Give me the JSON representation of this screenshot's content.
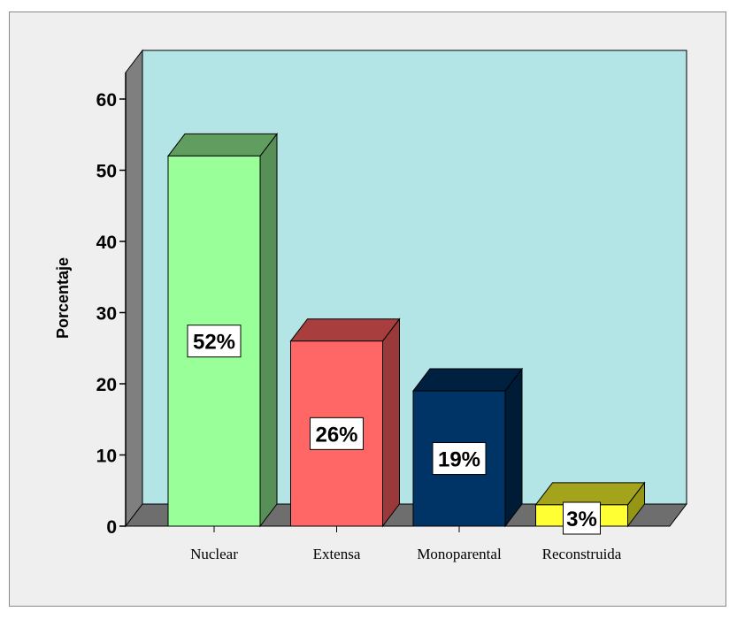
{
  "chart_data": {
    "type": "bar",
    "title": "",
    "xlabel": "",
    "ylabel": "Porcentaje",
    "ylim": [
      0,
      60
    ],
    "yticks": [
      0,
      10,
      20,
      30,
      40,
      50,
      60
    ],
    "categories": [
      "Nuclear",
      "Extensa",
      "Monoparental",
      "Reconstruida"
    ],
    "values": [
      52,
      26,
      19,
      3
    ],
    "data_labels": [
      "52%",
      "26%",
      "19%",
      "3%"
    ],
    "grid": false,
    "style": "3d",
    "colors": {
      "plot_background": "#b3e5e6",
      "wall_side": "#7f7f7f",
      "floor": "#6e6e6e",
      "bars": [
        {
          "front": "#99ff99",
          "top": "#5f9e5f",
          "side": "#578f57"
        },
        {
          "front": "#ff6666",
          "top": "#a83e3e",
          "side": "#993939"
        },
        {
          "front": "#003366",
          "top": "#00203f",
          "side": "#001b36"
        },
        {
          "front": "#ffff33",
          "top": "#a3a31c",
          "side": "#969615"
        }
      ]
    }
  }
}
